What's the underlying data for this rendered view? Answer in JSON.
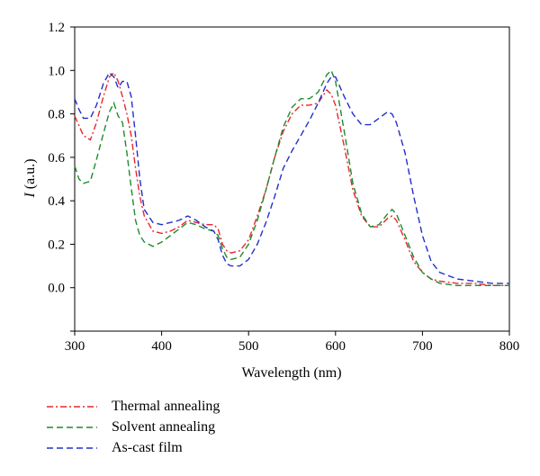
{
  "chart_data": {
    "type": "line",
    "title": "",
    "xlabel": "Wavelength (nm)",
    "ylabel_italic": "I",
    "ylabel_rest": " (a.u.)",
    "xlim": [
      300,
      800
    ],
    "ylim": [
      -0.2,
      1.2
    ],
    "x_ticks": [
      "300",
      "400",
      "500",
      "600",
      "700",
      "800"
    ],
    "y_ticks": [
      "0.0",
      "0.2",
      "0.4",
      "0.6",
      "0.8",
      "1.0",
      "1.2"
    ],
    "grid": false,
    "legend_position": "bottom-left, below plot",
    "series": [
      {
        "name": "Thermal annealing",
        "color": "#e8262b",
        "dash": "dash-dot",
        "points": [
          [
            300,
            0.79
          ],
          [
            310,
            0.7
          ],
          [
            318,
            0.68
          ],
          [
            325,
            0.76
          ],
          [
            333,
            0.88
          ],
          [
            340,
            0.97
          ],
          [
            345,
            0.99
          ],
          [
            350,
            0.95
          ],
          [
            355,
            0.88
          ],
          [
            360,
            0.8
          ],
          [
            365,
            0.7
          ],
          [
            370,
            0.55
          ],
          [
            375,
            0.42
          ],
          [
            380,
            0.33
          ],
          [
            390,
            0.26
          ],
          [
            400,
            0.25
          ],
          [
            410,
            0.26
          ],
          [
            420,
            0.28
          ],
          [
            430,
            0.31
          ],
          [
            440,
            0.3
          ],
          [
            450,
            0.29
          ],
          [
            460,
            0.29
          ],
          [
            465,
            0.27
          ],
          [
            470,
            0.2
          ],
          [
            475,
            0.17
          ],
          [
            480,
            0.16
          ],
          [
            490,
            0.17
          ],
          [
            500,
            0.22
          ],
          [
            510,
            0.33
          ],
          [
            520,
            0.45
          ],
          [
            530,
            0.6
          ],
          [
            540,
            0.72
          ],
          [
            550,
            0.8
          ],
          [
            560,
            0.84
          ],
          [
            570,
            0.84
          ],
          [
            580,
            0.85
          ],
          [
            590,
            0.91
          ],
          [
            595,
            0.89
          ],
          [
            600,
            0.84
          ],
          [
            610,
            0.65
          ],
          [
            620,
            0.45
          ],
          [
            630,
            0.33
          ],
          [
            640,
            0.28
          ],
          [
            650,
            0.28
          ],
          [
            660,
            0.32
          ],
          [
            665,
            0.33
          ],
          [
            670,
            0.31
          ],
          [
            680,
            0.22
          ],
          [
            690,
            0.12
          ],
          [
            700,
            0.07
          ],
          [
            710,
            0.04
          ],
          [
            720,
            0.03
          ],
          [
            740,
            0.02
          ],
          [
            760,
            0.02
          ],
          [
            780,
            0.01
          ],
          [
            800,
            0.01
          ]
        ]
      },
      {
        "name": "Solvent annealing",
        "color": "#1f8a2e",
        "dash": "dash",
        "points": [
          [
            300,
            0.56
          ],
          [
            305,
            0.5
          ],
          [
            310,
            0.48
          ],
          [
            318,
            0.49
          ],
          [
            325,
            0.59
          ],
          [
            333,
            0.71
          ],
          [
            340,
            0.81
          ],
          [
            345,
            0.85
          ],
          [
            350,
            0.79
          ],
          [
            355,
            0.76
          ],
          [
            360,
            0.62
          ],
          [
            365,
            0.46
          ],
          [
            370,
            0.31
          ],
          [
            375,
            0.24
          ],
          [
            380,
            0.21
          ],
          [
            390,
            0.19
          ],
          [
            400,
            0.21
          ],
          [
            410,
            0.24
          ],
          [
            420,
            0.27
          ],
          [
            430,
            0.3
          ],
          [
            440,
            0.29
          ],
          [
            450,
            0.27
          ],
          [
            460,
            0.26
          ],
          [
            465,
            0.24
          ],
          [
            470,
            0.18
          ],
          [
            475,
            0.14
          ],
          [
            480,
            0.13
          ],
          [
            490,
            0.14
          ],
          [
            500,
            0.2
          ],
          [
            510,
            0.31
          ],
          [
            520,
            0.45
          ],
          [
            530,
            0.6
          ],
          [
            540,
            0.74
          ],
          [
            550,
            0.83
          ],
          [
            560,
            0.87
          ],
          [
            570,
            0.87
          ],
          [
            580,
            0.9
          ],
          [
            590,
            0.98
          ],
          [
            595,
            1.0
          ],
          [
            600,
            0.95
          ],
          [
            610,
            0.72
          ],
          [
            620,
            0.48
          ],
          [
            630,
            0.34
          ],
          [
            640,
            0.28
          ],
          [
            650,
            0.29
          ],
          [
            660,
            0.34
          ],
          [
            665,
            0.36
          ],
          [
            670,
            0.34
          ],
          [
            680,
            0.24
          ],
          [
            690,
            0.14
          ],
          [
            700,
            0.07
          ],
          [
            710,
            0.04
          ],
          [
            720,
            0.02
          ],
          [
            740,
            0.01
          ],
          [
            760,
            0.01
          ],
          [
            780,
            0.01
          ],
          [
            800,
            0.01
          ]
        ]
      },
      {
        "name": "As-cast film",
        "color": "#2230c8",
        "dash": "dash",
        "points": [
          [
            300,
            0.87
          ],
          [
            305,
            0.82
          ],
          [
            310,
            0.78
          ],
          [
            318,
            0.78
          ],
          [
            325,
            0.84
          ],
          [
            333,
            0.94
          ],
          [
            340,
            0.99
          ],
          [
            345,
            0.97
          ],
          [
            350,
            0.92
          ],
          [
            355,
            0.95
          ],
          [
            360,
            0.95
          ],
          [
            365,
            0.88
          ],
          [
            370,
            0.7
          ],
          [
            375,
            0.5
          ],
          [
            380,
            0.36
          ],
          [
            390,
            0.3
          ],
          [
            400,
            0.29
          ],
          [
            410,
            0.3
          ],
          [
            420,
            0.31
          ],
          [
            430,
            0.33
          ],
          [
            440,
            0.31
          ],
          [
            450,
            0.28
          ],
          [
            460,
            0.26
          ],
          [
            465,
            0.22
          ],
          [
            470,
            0.15
          ],
          [
            475,
            0.11
          ],
          [
            480,
            0.1
          ],
          [
            490,
            0.1
          ],
          [
            500,
            0.13
          ],
          [
            510,
            0.2
          ],
          [
            520,
            0.3
          ],
          [
            530,
            0.42
          ],
          [
            540,
            0.55
          ],
          [
            550,
            0.63
          ],
          [
            560,
            0.7
          ],
          [
            570,
            0.77
          ],
          [
            580,
            0.85
          ],
          [
            590,
            0.94
          ],
          [
            595,
            0.97
          ],
          [
            600,
            0.97
          ],
          [
            610,
            0.88
          ],
          [
            620,
            0.8
          ],
          [
            630,
            0.75
          ],
          [
            640,
            0.75
          ],
          [
            650,
            0.78
          ],
          [
            660,
            0.81
          ],
          [
            665,
            0.8
          ],
          [
            670,
            0.76
          ],
          [
            680,
            0.62
          ],
          [
            690,
            0.42
          ],
          [
            700,
            0.24
          ],
          [
            710,
            0.12
          ],
          [
            720,
            0.07
          ],
          [
            740,
            0.04
          ],
          [
            760,
            0.03
          ],
          [
            780,
            0.02
          ],
          [
            800,
            0.02
          ]
        ]
      }
    ]
  }
}
